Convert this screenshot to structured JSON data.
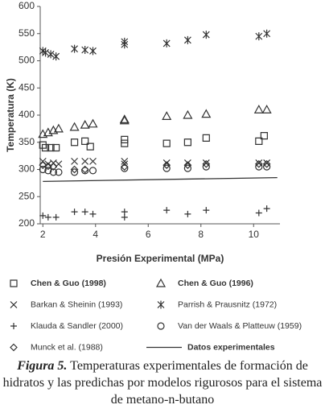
{
  "chart_data": {
    "type": "scatter",
    "x_label": "Presión Experimental (MPa)",
    "y_label": "Temperatura (K)",
    "xlim": [
      1.9,
      11
    ],
    "xticks": [
      2,
      4,
      6,
      8,
      10
    ],
    "ylim": [
      200,
      600
    ],
    "yticks": [
      200,
      250,
      300,
      350,
      400,
      450,
      500,
      550,
      600
    ],
    "series": [
      {
        "name": "Chen & Guo (1998)",
        "marker": "square",
        "color": "#333333",
        "x": [
          2.0,
          2.1,
          2.3,
          2.5,
          3.2,
          3.6,
          3.8,
          5.1,
          5.1,
          6.7,
          7.5,
          8.2,
          10.2,
          10.4
        ],
        "values": [
          345,
          340,
          340,
          340,
          350,
          352,
          342,
          348,
          355,
          348,
          350,
          358,
          352,
          362
        ]
      },
      {
        "name": "Chen & Guo (1996)",
        "marker": "triangle",
        "color": "#333333",
        "x": [
          2.0,
          2.2,
          2.4,
          2.6,
          3.2,
          3.6,
          3.9,
          5.1,
          5.1,
          6.7,
          7.5,
          8.2,
          10.2,
          10.5
        ],
        "values": [
          365,
          368,
          372,
          375,
          378,
          382,
          384,
          392,
          390,
          398,
          400,
          402,
          410,
          410
        ]
      },
      {
        "name": "Barkan & Sheinin (1993)",
        "marker": "x",
        "color": "#333333",
        "x": [
          2.0,
          2.2,
          2.4,
          2.6,
          3.2,
          3.6,
          3.9,
          5.1,
          5.1,
          6.7,
          7.5,
          8.2,
          10.2,
          10.5
        ],
        "values": [
          315,
          310,
          312,
          310,
          315,
          315,
          315,
          315,
          310,
          312,
          312,
          312,
          312,
          312
        ]
      },
      {
        "name": "Parrish & Prausnitz (1972)",
        "marker": "star",
        "color": "#333333",
        "x": [
          2.0,
          2.1,
          2.3,
          2.5,
          3.2,
          3.6,
          3.9,
          5.1,
          5.1,
          6.7,
          7.5,
          8.2,
          10.2,
          10.5
        ],
        "values": [
          518,
          515,
          512,
          508,
          522,
          520,
          518,
          535,
          530,
          532,
          538,
          548,
          545,
          550
        ]
      },
      {
        "name": "Klauda & Sandler (2000)",
        "marker": "plus",
        "color": "#333333",
        "x": [
          2.0,
          2.2,
          2.5,
          3.2,
          3.6,
          3.9,
          5.1,
          5.1,
          6.7,
          7.5,
          8.2,
          10.2,
          10.5
        ],
        "values": [
          215,
          212,
          212,
          222,
          222,
          218,
          222,
          212,
          225,
          218,
          225,
          220,
          228
        ]
      },
      {
        "name": "Van der Waals  & Platteuw (1959)",
        "marker": "circle",
        "color": "#333333",
        "x": [
          2.0,
          2.2,
          2.4,
          2.6,
          3.2,
          3.6,
          3.9,
          5.1,
          6.7,
          7.5,
          8.2,
          10.2,
          10.5
        ],
        "values": [
          300,
          298,
          295,
          295,
          295,
          298,
          298,
          302,
          302,
          302,
          305,
          305,
          305
        ]
      },
      {
        "name": "Munck et al. (1988)",
        "marker": "diamond",
        "color": "#333333",
        "x": [
          2.0,
          2.2,
          2.4,
          3.2,
          3.6,
          5.1,
          6.7,
          7.5,
          8.2,
          10.2,
          10.5
        ],
        "values": [
          308,
          306,
          305,
          300,
          300,
          305,
          308,
          308,
          310,
          310,
          310
        ]
      },
      {
        "name": "Datos experimentales",
        "marker": "line",
        "color": "#333333",
        "x": [
          2.0,
          10.9
        ],
        "values": [
          278,
          285
        ]
      }
    ]
  },
  "caption": {
    "label": "Figura 5.",
    "text": "Temperaturas experimentales de formación de hidratos y las predichas por modelos rigurosos para el sistema de metano-n-butano"
  }
}
